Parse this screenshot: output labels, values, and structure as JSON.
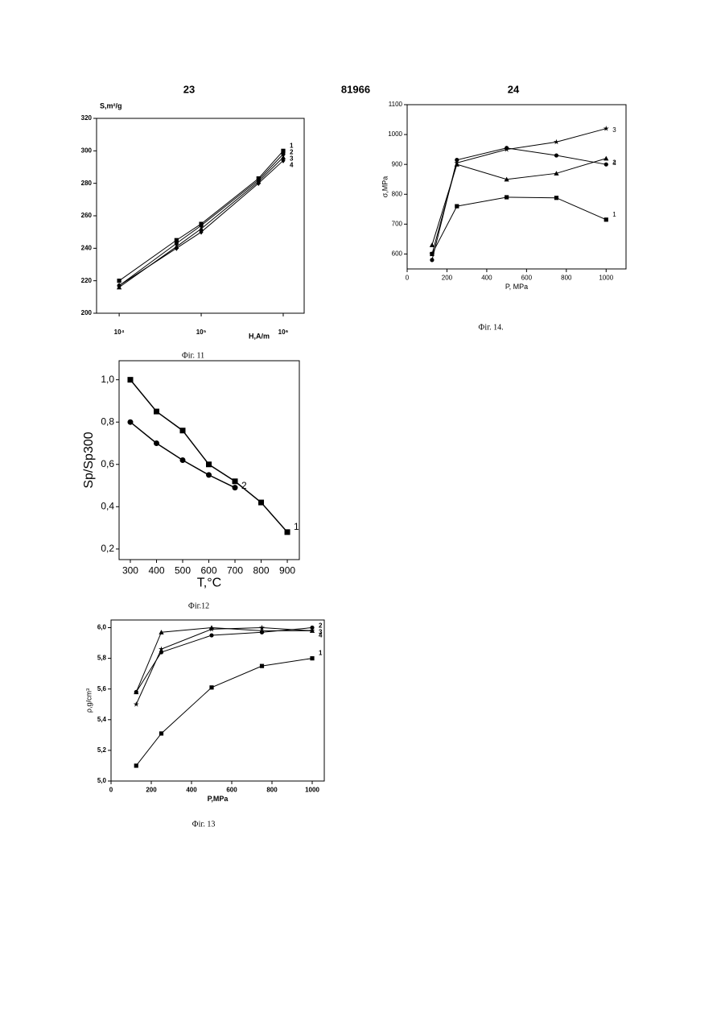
{
  "header": {
    "left": "23",
    "center": "81966",
    "right": "24"
  },
  "chart_data": [
    {
      "type": "line",
      "caption": "Фіг. 11",
      "xlabel": "H,A/m",
      "ylabel": "S,m²/g",
      "xscale": "log",
      "x": [
        10000,
        50000,
        100000,
        500000,
        1000000
      ],
      "xlim": [
        5300,
        1800000
      ],
      "xticks": [
        {
          "value": 10000,
          "label": "10⁴"
        },
        {
          "value": 100000,
          "label": "10⁵"
        },
        {
          "value": 1000000,
          "label": "10⁶"
        }
      ],
      "ylim": [
        200,
        320
      ],
      "yticks": [
        200,
        220,
        240,
        260,
        280,
        300,
        320
      ],
      "color": "#000000",
      "series": [
        {
          "name": "1",
          "marker": "square",
          "values": [
            220,
            245,
            255,
            283,
            300
          ]
        },
        {
          "name": "2",
          "marker": "circle",
          "values": [
            217,
            243,
            254,
            282,
            298
          ]
        },
        {
          "name": "3",
          "marker": "triangle",
          "values": [
            216,
            241,
            252,
            281,
            296
          ]
        },
        {
          "name": "4",
          "marker": "diamond",
          "values": [
            217,
            240,
            250,
            280,
            294
          ]
        }
      ]
    },
    {
      "type": "line",
      "caption": "Фіг. 14.",
      "xlabel": "P, MPa",
      "ylabel": "σ,MPa",
      "x": [
        125,
        250,
        500,
        750,
        1000
      ],
      "xlim": [
        0,
        1100
      ],
      "xticks": [
        0,
        200,
        400,
        600,
        800,
        1000
      ],
      "ylim": [
        550,
        1100
      ],
      "yticks": [
        600,
        700,
        800,
        900,
        1000,
        1100
      ],
      "color": "#000000",
      "series": [
        {
          "name": "1",
          "marker": "square",
          "values": [
            600,
            760,
            790,
            788,
            715
          ]
        },
        {
          "name": "2",
          "marker": "circle",
          "values": [
            580,
            915,
            955,
            930,
            900
          ]
        },
        {
          "name": "3",
          "marker": "star",
          "values": [
            600,
            905,
            950,
            975,
            1020
          ]
        },
        {
          "name": "4",
          "marker": "triangle",
          "values": [
            630,
            900,
            850,
            870,
            920
          ]
        }
      ]
    },
    {
      "type": "line",
      "caption": "Фіг.12",
      "xlabel": "T,°C",
      "ylabel": "Sp/Sp300",
      "xlim": [
        257,
        946
      ],
      "xticks": [
        300,
        400,
        500,
        600,
        700,
        800,
        900
      ],
      "ylim": [
        0.15,
        1.09
      ],
      "yticks": [
        {
          "value": 0.2,
          "label": "0,2"
        },
        {
          "value": 0.4,
          "label": "0,4"
        },
        {
          "value": 0.6,
          "label": "0,6"
        },
        {
          "value": 0.8,
          "label": "0,8"
        },
        {
          "value": 1.0,
          "label": "1,0"
        }
      ],
      "color": "#000000",
      "series": [
        {
          "name": "1",
          "marker": "square",
          "x": [
            300,
            400,
            500,
            600,
            700,
            800,
            900
          ],
          "values": [
            1.0,
            0.85,
            0.76,
            0.6,
            0.52,
            0.42,
            0.28
          ]
        },
        {
          "name": "2",
          "marker": "circle",
          "x": [
            300,
            400,
            500,
            600,
            700
          ],
          "values": [
            0.8,
            0.7,
            0.62,
            0.55,
            0.49
          ]
        }
      ]
    },
    {
      "type": "line",
      "caption": "Фіг. 13",
      "xlabel": "P,MPa",
      "ylabel": "ρ,g/cm³",
      "x": [
        125,
        250,
        500,
        750,
        1000
      ],
      "xlim": [
        0,
        1060
      ],
      "xticks": [
        0,
        200,
        400,
        600,
        800,
        1000
      ],
      "ylim": [
        5.0,
        6.05
      ],
      "yticks": [
        {
          "value": 5.0,
          "label": "5,0"
        },
        {
          "value": 5.2,
          "label": "5,2"
        },
        {
          "value": 5.4,
          "label": "5,4"
        },
        {
          "value": 5.6,
          "label": "5,6"
        },
        {
          "value": 5.8,
          "label": "5,8"
        },
        {
          "value": 6.0,
          "label": "6,0"
        }
      ],
      "color": "#000000",
      "series": [
        {
          "name": "1",
          "marker": "square",
          "values": [
            5.1,
            5.31,
            5.61,
            5.75,
            5.8
          ]
        },
        {
          "name": "2",
          "marker": "circle",
          "values": [
            5.58,
            5.84,
            5.95,
            5.97,
            6.0
          ]
        },
        {
          "name": "3",
          "marker": "triangle",
          "values": [
            5.58,
            5.97,
            6.0,
            5.98,
            5.98
          ]
        },
        {
          "name": "4",
          "marker": "star",
          "values": [
            5.5,
            5.86,
            5.99,
            6.0,
            5.98
          ]
        }
      ]
    }
  ]
}
